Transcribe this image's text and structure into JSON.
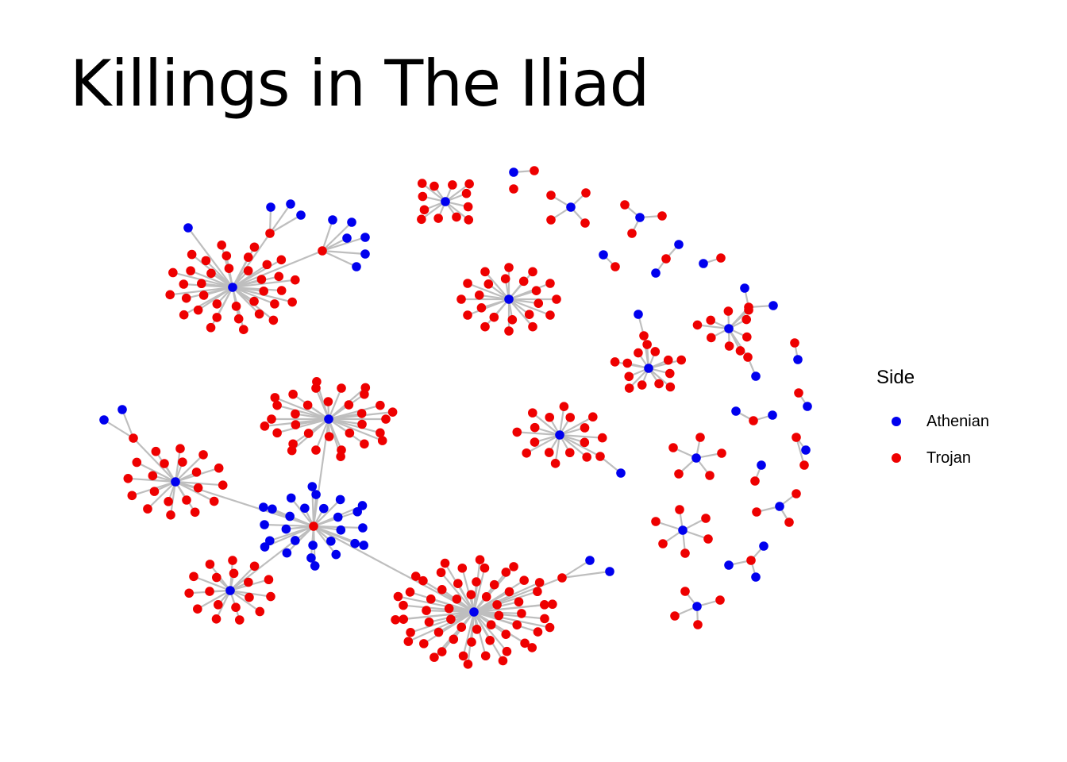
{
  "title": "Killings in The Iliad",
  "legend": {
    "title": "Side",
    "items": [
      {
        "label": "Athenian",
        "color": "#0000ee"
      },
      {
        "label": "Trojan",
        "color": "#ee0000"
      }
    ]
  },
  "edge_color": "#bebebe",
  "chart_data": {
    "type": "network",
    "title": "Killings in The Iliad",
    "legend_title": "Side",
    "categories": [
      "Athenian",
      "Trojan"
    ]
  }
}
